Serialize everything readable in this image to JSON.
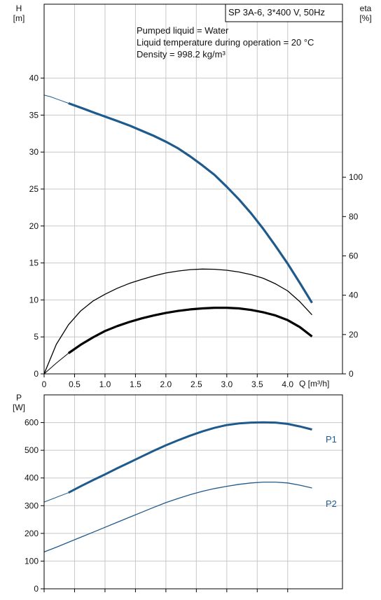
{
  "chart_data": [
    {
      "type": "line",
      "name": "pump-curve",
      "title": "SP 3A-6, 3*400 V, 50Hz",
      "info_lines": [
        "Pumped liquid = Water",
        "Liquid temperature during operation = 20 °C",
        "Density = 998.2 kg/m³"
      ],
      "xlabel": "Q [m³/h]",
      "ylabel_left_name": "H",
      "ylabel_left_unit": "[m]",
      "ylabel_right_name": "eta",
      "ylabel_right_unit": "[%]",
      "xlim": [
        0,
        4.9
      ],
      "ylim_left": [
        0,
        50
      ],
      "ylim_right": [
        0,
        188
      ],
      "x_ticks": [
        0,
        0.5,
        1.0,
        1.5,
        2.0,
        2.5,
        3.0,
        3.5,
        4.0
      ],
      "x_tick_labels": [
        "0",
        "0.5",
        "1.0",
        "1.5",
        "2.0",
        "2.5",
        "3.0",
        "3.5",
        "4.0"
      ],
      "y_left_ticks": [
        0,
        5,
        10,
        15,
        20,
        25,
        30,
        35,
        40
      ],
      "y_right_ticks": [
        0,
        20,
        40,
        60,
        80,
        100
      ],
      "grid": true,
      "series": [
        {
          "id": "head",
          "axis": "left",
          "color": "#1f5a8c",
          "width": 3.2,
          "ext_x": [
            0,
            0.1,
            0.2,
            0.3,
            0.4
          ],
          "ext_y": [
            37.7,
            37.5,
            37.2,
            36.9,
            36.6
          ],
          "x": [
            0.4,
            0.6,
            0.8,
            1.0,
            1.2,
            1.4,
            1.6,
            1.8,
            2.0,
            2.2,
            2.4,
            2.6,
            2.8,
            3.0,
            3.2,
            3.4,
            3.6,
            3.8,
            4.0,
            4.2,
            4.4
          ],
          "y": [
            36.6,
            36.0,
            35.4,
            34.8,
            34.2,
            33.6,
            32.9,
            32.2,
            31.4,
            30.5,
            29.4,
            28.2,
            26.9,
            25.3,
            23.6,
            21.7,
            19.6,
            17.3,
            14.9,
            12.3,
            9.6
          ]
        },
        {
          "id": "eta-thin",
          "axis": "right",
          "color": "#000000",
          "width": 1.3,
          "x": [
            0,
            0.2,
            0.4,
            0.6,
            0.8,
            1.0,
            1.2,
            1.4,
            1.6,
            1.8,
            2.0,
            2.2,
            2.4,
            2.6,
            2.8,
            3.0,
            3.2,
            3.4,
            3.6,
            3.8,
            4.0,
            4.2,
            4.4
          ],
          "y": [
            0,
            15,
            25,
            32,
            37,
            40.5,
            43.5,
            46,
            48,
            49.8,
            51.3,
            52.3,
            53,
            53.3,
            53.2,
            52.7,
            51.8,
            50.5,
            48.6,
            45.8,
            42.2,
            36.7,
            30
          ]
        },
        {
          "id": "eta-thick",
          "axis": "right",
          "color": "#000000",
          "width": 3.2,
          "ext_x": [
            0,
            0.2,
            0.4
          ],
          "ext_y": [
            0,
            5.5,
            10.5
          ],
          "x": [
            0.4,
            0.6,
            0.8,
            1.0,
            1.2,
            1.4,
            1.6,
            1.8,
            2.0,
            2.2,
            2.4,
            2.6,
            2.8,
            3.0,
            3.2,
            3.4,
            3.6,
            3.8,
            4.0,
            4.2,
            4.4
          ],
          "y": [
            10.5,
            14.8,
            18.5,
            21.8,
            24.3,
            26.4,
            28.2,
            29.7,
            31,
            32,
            32.8,
            33.3,
            33.6,
            33.6,
            33.3,
            32.5,
            31.3,
            29.7,
            27.3,
            23.8,
            19
          ]
        }
      ]
    },
    {
      "type": "line",
      "name": "power-curve",
      "xlim": [
        0,
        4.9
      ],
      "ylim": [
        0,
        700
      ],
      "ylabel_name": "P",
      "ylabel_unit": "[W]",
      "y_ticks": [
        0,
        100,
        200,
        300,
        400,
        500,
        600
      ],
      "grid": true,
      "series": [
        {
          "id": "P1",
          "name": "P1",
          "color": "#1f5a8c",
          "width": 3.0,
          "ext_x": [
            0,
            0.2,
            0.4
          ],
          "ext_y": [
            313,
            330,
            347
          ],
          "x": [
            0.4,
            0.6,
            0.8,
            1.0,
            1.2,
            1.4,
            1.6,
            1.8,
            2.0,
            2.2,
            2.4,
            2.6,
            2.8,
            3.0,
            3.2,
            3.4,
            3.6,
            3.8,
            4.0,
            4.2,
            4.4
          ],
          "y": [
            347,
            370,
            392,
            413,
            435,
            456,
            477,
            498,
            518,
            536,
            553,
            568,
            581,
            591,
            597,
            600,
            601,
            600,
            595,
            586,
            575
          ]
        },
        {
          "id": "P2",
          "name": "P2",
          "color": "#1f5a8c",
          "width": 1.3,
          "x": [
            0,
            0.2,
            0.4,
            0.6,
            0.8,
            1.0,
            1.2,
            1.4,
            1.6,
            1.8,
            2.0,
            2.2,
            2.4,
            2.6,
            2.8,
            3.0,
            3.2,
            3.4,
            3.6,
            3.8,
            4.0,
            4.2,
            4.4
          ],
          "y": [
            133,
            150,
            168,
            186,
            204,
            222,
            240,
            258,
            276,
            294,
            311,
            326,
            340,
            352,
            362,
            370,
            377,
            382,
            385,
            385,
            382,
            374,
            364
          ]
        }
      ]
    }
  ]
}
